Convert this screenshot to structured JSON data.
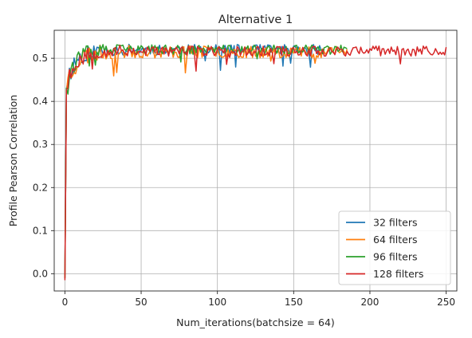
{
  "chart_data": {
    "type": "line",
    "title": "Alternative 1",
    "xlabel": "Num_iterations(batchsize = 64)",
    "ylabel": "Profile Pearson Correlation",
    "xlim": [
      -7,
      257
    ],
    "ylim": [
      -0.04,
      0.565
    ],
    "xticks": [
      0,
      50,
      100,
      150,
      200,
      250
    ],
    "yticks": [
      0.0,
      0.1,
      0.2,
      0.3,
      0.4,
      0.5
    ],
    "xtick_labels": [
      "0",
      "50",
      "100",
      "150",
      "200",
      "250"
    ],
    "ytick_labels": [
      "0.0",
      "0.1",
      "0.2",
      "0.3",
      "0.4",
      "0.5"
    ],
    "grid": true,
    "legend_position": "lower-right",
    "series": [
      {
        "name": "32 filters",
        "color": "#1f77b4",
        "start": -0.01,
        "plateau": 0.52,
        "x_end": 170,
        "noise": 0.012,
        "seed": 11
      },
      {
        "name": "64 filters",
        "color": "#ff7f0e",
        "start": -0.01,
        "plateau": 0.515,
        "x_end": 185,
        "noise": 0.014,
        "seed": 23
      },
      {
        "name": "96 filters",
        "color": "#2ca02c",
        "start": -0.01,
        "plateau": 0.52,
        "x_end": 185,
        "noise": 0.011,
        "seed": 37
      },
      {
        "name": "128 filters",
        "color": "#d62728",
        "start": -0.015,
        "plateau": 0.517,
        "x_end": 250,
        "noise": 0.012,
        "seed": 53
      }
    ]
  }
}
